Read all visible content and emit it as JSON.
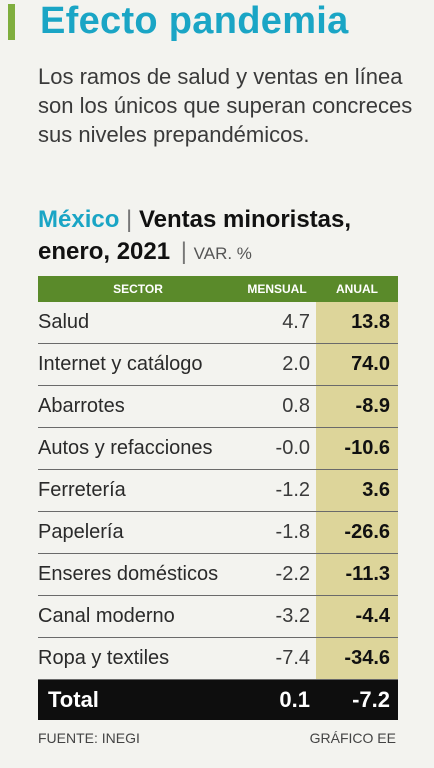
{
  "title": "Efecto pandemia",
  "dek": "Los ramos de salud y ventas en línea son los únicos que superan concreces sus niveles prepandémicos.",
  "heading": {
    "country": "México",
    "separator": "|",
    "subject": "Ventas minoristas,",
    "period": "enero, 2021",
    "unit": "VAR. %"
  },
  "table": {
    "columns": [
      "SECTOR",
      "MENSUAL",
      "ANUAL"
    ],
    "rows": [
      {
        "sector": "Salud",
        "mensual": "4.7",
        "anual": "13.8"
      },
      {
        "sector": "Internet y catálogo",
        "mensual": "2.0",
        "anual": "74.0"
      },
      {
        "sector": "Abarrotes",
        "mensual": "0.8",
        "anual": "-8.9"
      },
      {
        "sector": "Autos y refacciones",
        "mensual": "-0.0",
        "anual": "-10.6"
      },
      {
        "sector": "Ferretería",
        "mensual": "-1.2",
        "anual": "3.6"
      },
      {
        "sector": "Papelería",
        "mensual": "-1.8",
        "anual": "-26.6"
      },
      {
        "sector": "Enseres domésticos",
        "mensual": "-2.2",
        "anual": "-11.3"
      },
      {
        "sector": "Canal moderno",
        "mensual": "-3.2",
        "anual": "-4.4"
      },
      {
        "sector": "Ropa y textiles",
        "mensual": "-7.4",
        "anual": "-34.6"
      }
    ],
    "total": {
      "label": "Total",
      "mensual": "0.1",
      "anual": "-7.2"
    }
  },
  "footer": {
    "source": "FUENTE: INEGI",
    "credit": "GRÁFICO EE"
  },
  "colors": {
    "title": "#1aa5c5",
    "accent": "#7fae3e",
    "header_bg": "#5a8a2a",
    "anual_bg": "#ddd59a",
    "total_bg": "#0e0e0e"
  }
}
